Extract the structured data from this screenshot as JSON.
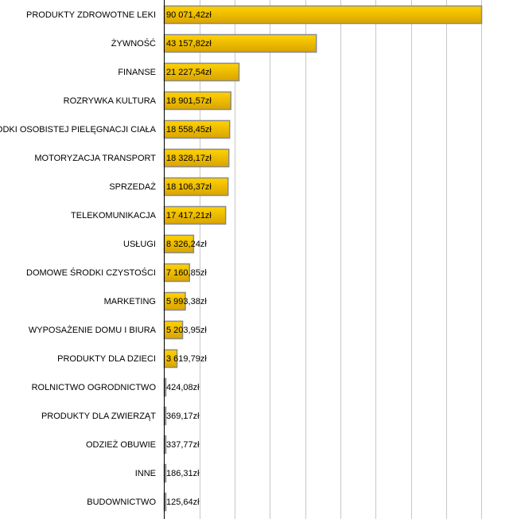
{
  "chart_data": {
    "type": "bar",
    "orientation": "horizontal",
    "title": "",
    "xlabel": "",
    "ylabel": "",
    "xlim": [
      0,
      100000
    ],
    "grid": true,
    "gridline_step": 10000,
    "currency_suffix": "zł",
    "categories": [
      "PRODUKTY ZDROWOTNE LEKI",
      "ŻYWNOŚĆ",
      "FINANSE",
      "ROZRYWKA KULTURA",
      "ŚRODKI OSOBISTEJ PIELĘGNACJI CIAŁA",
      "MOTORYZACJA TRANSPORT",
      "SPRZEDAŻ",
      "TELEKOMUNIKACJA",
      "USŁUGI",
      "DOMOWE ŚRODKI CZYSTOŚCI",
      "MARKETING",
      "WYPOSAŻENIE DOMU I BIURA",
      "PRODUKTY DLA DZIECI",
      "ROLNICTWO OGRODNICTWO",
      "PRODUKTY DLA ZWIERZĄT",
      "ODZIEŻ OBUWIE",
      "INNE",
      "BUDOWNICTWO"
    ],
    "values": [
      90071.42,
      43157.82,
      21227.54,
      18901.57,
      18558.45,
      18328.17,
      18106.37,
      17417.21,
      8326.24,
      7160.85,
      5993.38,
      5203.95,
      3619.79,
      424.08,
      369.17,
      337.77,
      186.31,
      125.64
    ],
    "data_labels": [
      "90 071,42zł",
      "43 157,82zł",
      "21 227,54zł",
      "18 901,57zł",
      "18 558,45zł",
      "18 328,17zł",
      "18 106,37zł",
      "17 417,21zł",
      "8 326,24zł",
      "7 160,85zł",
      "5 993,38zł",
      "5 203,95zł",
      "3 619,79zł",
      "424,08zł",
      "369,17zł",
      "337,77zł",
      "186,31zł",
      "125,64zł"
    ],
    "colors": {
      "bar_top": "#ffd200",
      "bar_bottom": "#d9a400",
      "bar_border": "#8a8a8a",
      "grid": "#c8c8c8",
      "axis": "#000000"
    }
  }
}
